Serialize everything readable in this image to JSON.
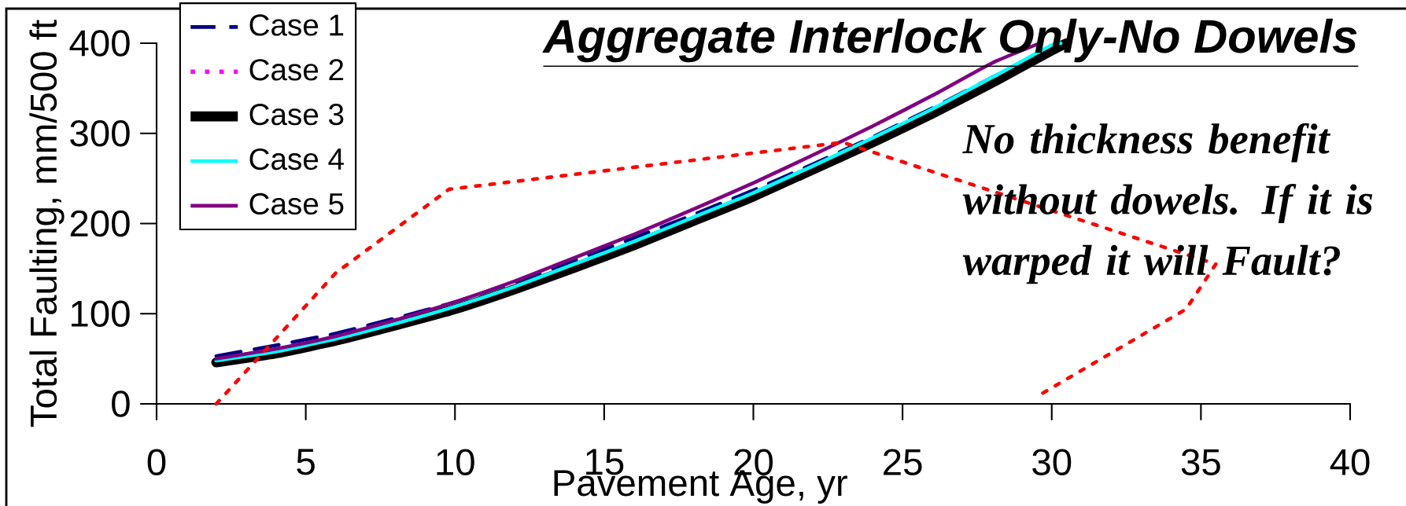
{
  "chart_data": {
    "type": "line",
    "title": "Aggregate Interlock Only-No Dowels",
    "xlabel": "Pavement Age, yr",
    "ylabel": "Total Faulting, mm/500 ft",
    "annotations": [
      "No thickness benefit without dowels.  If it is warped it will Fault?"
    ],
    "x": [
      2,
      4,
      6,
      8,
      10,
      12,
      14,
      16,
      18,
      20,
      22,
      24,
      26,
      28,
      30,
      30.3
    ],
    "series": [
      {
        "name": "Case 1",
        "color": "#000080",
        "line_style": "dashed",
        "values": [
          53,
          65,
          78,
          95,
          113,
          135,
          159,
          184,
          210,
          237,
          266,
          296,
          328,
          362,
          396,
          400
        ]
      },
      {
        "name": "Case 2",
        "color": "#ff00ff",
        "line_style": "dotted",
        "values": [
          null,
          null,
          null,
          null,
          null,
          null,
          null,
          null,
          null,
          null,
          null,
          null,
          null,
          null,
          null,
          null
        ]
      },
      {
        "name": "Case 3",
        "color": "#000000",
        "line_style": "solid",
        "x": [
          2,
          4,
          6,
          8,
          10,
          12,
          14,
          16,
          18,
          20,
          22,
          24,
          26,
          28,
          30,
          30.5
        ],
        "values": [
          46,
          56,
          70,
          87,
          105,
          127,
          151,
          176,
          203,
          230,
          260,
          290,
          322,
          356,
          392,
          400
        ]
      },
      {
        "name": "Case 4",
        "color": "#00ffff",
        "line_style": "solid",
        "values": [
          48,
          58,
          72,
          89,
          108,
          130,
          155,
          180,
          207,
          234,
          264,
          295,
          327,
          362,
          398,
          400
        ]
      },
      {
        "name": "Case 5",
        "color": "#800080",
        "line_style": "solid",
        "x": [
          2,
          4,
          6,
          8,
          10,
          12,
          14,
          16,
          18,
          20,
          22,
          24,
          26,
          28,
          29.6
        ],
        "values": [
          50,
          61,
          75,
          93,
          113,
          136,
          162,
          188,
          216,
          245,
          276,
          308,
          342,
          378,
          400
        ]
      },
      {
        "color": "#ff0000",
        "line_style": "dotted",
        "x": [
          2,
          6,
          9.8,
          23,
          35.5,
          34.5,
          29.6
        ],
        "values": [
          0,
          145,
          238,
          290,
          155,
          105,
          10
        ]
      }
    ],
    "xlim": [
      0,
      40
    ],
    "ylim": [
      0,
      400
    ],
    "xticks": [
      0,
      5,
      10,
      15,
      20,
      25,
      30,
      35,
      40
    ],
    "yticks": [
      0,
      100,
      200,
      300,
      400
    ],
    "grid": false,
    "legend": "top left",
    "marker": "none"
  }
}
